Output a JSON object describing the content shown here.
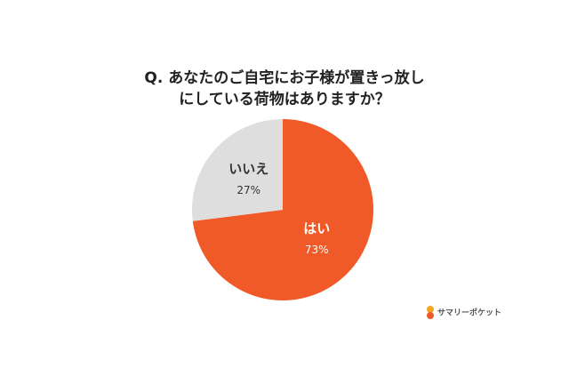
{
  "chart_data": {
    "type": "pie",
    "title": [
      "Q. あなたのご自宅にお子様が置きっ放し",
      "にしている荷物はありますか？"
    ],
    "categories": [
      "はい",
      "いいえ"
    ],
    "values": [
      73,
      27
    ],
    "value_labels": [
      "73%",
      "27%"
    ],
    "colors": [
      "#f05a28",
      "#dedede"
    ],
    "label_colors": [
      "#ffffff",
      "#333333"
    ],
    "brand": "サマリーポケット"
  }
}
